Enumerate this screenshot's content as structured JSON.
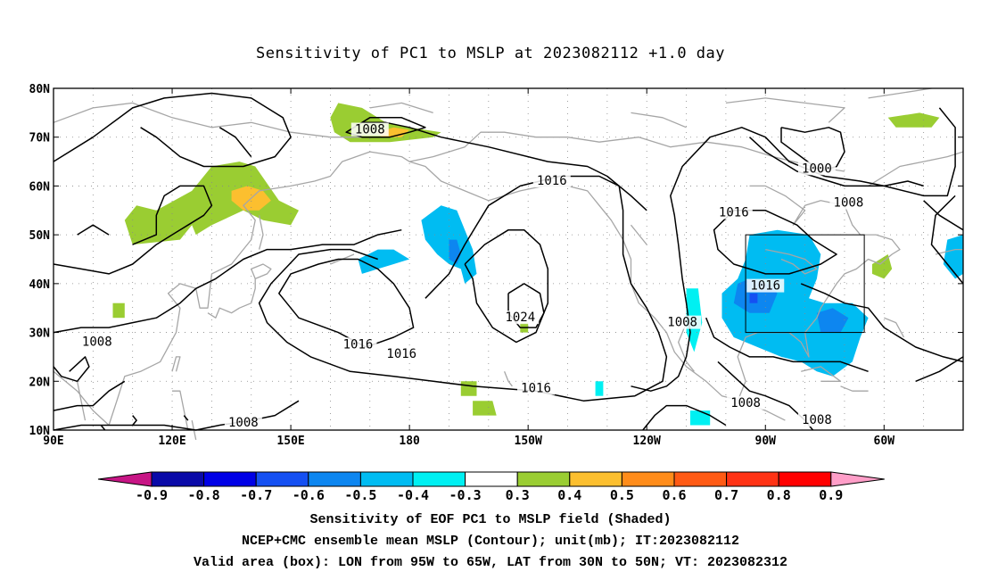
{
  "title": "Sensitivity of PC1 to MSLP at 2023082112 +1.0 day",
  "captions": [
    "Sensitivity of EOF PC1 to MSLP field (Shaded)",
    "NCEP+CMC ensemble mean MSLP (Contour); unit(mb); IT:2023082112",
    "Valid area (box): LON from 95W to 65W, LAT from 30N to 50N; VT: 2023082312"
  ],
  "map": {
    "lon_range": [
      90,
      320
    ],
    "lat_range": [
      10,
      80
    ],
    "lon_ticks": [
      {
        "lon": 90,
        "label": "90E"
      },
      {
        "lon": 120,
        "label": "120E"
      },
      {
        "lon": 150,
        "label": "150E"
      },
      {
        "lon": 180,
        "label": "180"
      },
      {
        "lon": 210,
        "label": "150W"
      },
      {
        "lon": 240,
        "label": "120W"
      },
      {
        "lon": 270,
        "label": "90W"
      },
      {
        "lon": 300,
        "label": "60W"
      }
    ],
    "lat_ticks": [
      {
        "lat": 10,
        "label": "10N"
      },
      {
        "lat": 20,
        "label": "20N"
      },
      {
        "lat": 30,
        "label": "30N"
      },
      {
        "lat": 40,
        "label": "40N"
      },
      {
        "lat": 50,
        "label": "50N"
      },
      {
        "lat": 60,
        "label": "60N"
      },
      {
        "lat": 70,
        "label": "70N"
      },
      {
        "lat": 80,
        "label": "80N"
      }
    ],
    "valid_box": {
      "lon": [
        265,
        295
      ],
      "lat": [
        30,
        50
      ]
    },
    "contour_labels": [
      {
        "lon": 170,
        "lat": 71.5,
        "text": "1008"
      },
      {
        "lon": 216,
        "lat": 61,
        "text": "1016"
      },
      {
        "lon": 283,
        "lat": 63.5,
        "text": "1000"
      },
      {
        "lon": 291,
        "lat": 56.5,
        "text": "1008"
      },
      {
        "lon": 262,
        "lat": 54.5,
        "text": "1016"
      },
      {
        "lon": 270,
        "lat": 39.5,
        "text": "1016"
      },
      {
        "lon": 208,
        "lat": 33,
        "text": "1024"
      },
      {
        "lon": 249,
        "lat": 32,
        "text": "1008"
      },
      {
        "lon": 178,
        "lat": 25.5,
        "text": "1016"
      },
      {
        "lon": 212,
        "lat": 18.5,
        "text": "1016"
      },
      {
        "lon": 167,
        "lat": 27.5,
        "text": "1016"
      },
      {
        "lon": 101,
        "lat": 28,
        "text": "1008"
      },
      {
        "lon": 138,
        "lat": 11.5,
        "text": "1008"
      },
      {
        "lon": 265,
        "lat": 15.5,
        "text": "1008"
      },
      {
        "lon": 283,
        "lat": 12,
        "text": "1008"
      }
    ]
  },
  "colorbar": {
    "labels": [
      "-0.9",
      "-0.8",
      "-0.7",
      "-0.6",
      "-0.5",
      "-0.4",
      "-0.3",
      "0.3",
      "0.4",
      "0.5",
      "0.6",
      "0.7",
      "0.8",
      "0.9"
    ],
    "colors": [
      "#0a0aa8",
      "#0000e6",
      "#1550f2",
      "#0d86f0",
      "#00bcf2",
      "#00f0f2",
      "#ffffff",
      "#9acd32",
      "#fcbf2f",
      "#ff8c1a",
      "#ff5a14",
      "#ff3214",
      "#ff0000"
    ],
    "low_arrow_color": "#c71585",
    "high_arrow_color": "#ff9ec8"
  }
}
